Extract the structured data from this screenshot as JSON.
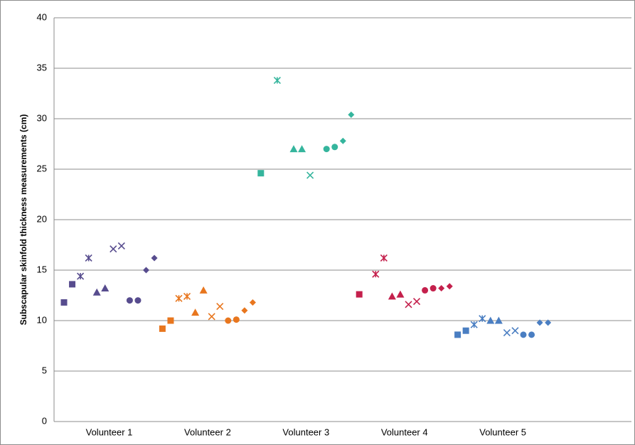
{
  "chart_data": {
    "type": "grouped-scatter",
    "y_label": "Subscapular skinfold thickness measurements (cm)",
    "categories": [
      "Volunteer 1",
      "Volunteer 2",
      "Volunteer 3",
      "Volunteer 4",
      "Volunteer 5"
    ],
    "markers": [
      "square",
      "square",
      "star",
      "star",
      "triangle",
      "triangle",
      "x",
      "x",
      "circle",
      "circle",
      "diamond",
      "diamond"
    ],
    "series": [
      {
        "color": "#574c8e",
        "values": [
          11.8,
          13.6,
          14.4,
          16.2,
          12.8,
          13.2,
          17.1,
          17.4,
          12.0,
          12.0,
          15.0,
          16.2
        ]
      },
      {
        "color": "#e8761e",
        "values": [
          9.2,
          10.0,
          12.2,
          12.4,
          10.8,
          13.0,
          10.4,
          11.4,
          10.0,
          10.1,
          11.0,
          11.8
        ]
      },
      {
        "color": "#35b59d",
        "values": [
          24.6,
          null,
          33.8,
          null,
          27.0,
          27.0,
          24.4,
          null,
          27.0,
          27.2,
          27.8,
          30.4
        ]
      },
      {
        "color": "#c4204c",
        "values": [
          12.6,
          null,
          14.6,
          16.2,
          12.4,
          12.6,
          11.6,
          11.9,
          13.0,
          13.2,
          13.2,
          13.4
        ]
      },
      {
        "color": "#4a7ec2",
        "values": [
          8.6,
          9.0,
          9.6,
          10.2,
          10.0,
          10.0,
          8.8,
          9.0,
          8.6,
          8.6,
          9.8,
          9.8
        ]
      }
    ],
    "ylim": [
      0,
      40
    ],
    "yticks": [
      0,
      5,
      10,
      15,
      20,
      25,
      30,
      35,
      40
    ],
    "grid": true
  }
}
